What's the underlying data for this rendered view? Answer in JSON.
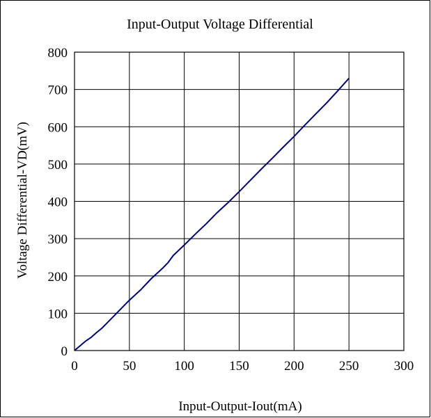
{
  "colors": {
    "series": "#000080",
    "grid": "#000000",
    "background": "#ffffff"
  },
  "chart_data": {
    "type": "line",
    "title": "Input-Output Voltage Differential",
    "xlabel": "Input-Output-Iout(mA)",
    "ylabel": "Voltage Differential-VD(mV)",
    "xlim": [
      0,
      300
    ],
    "ylim": [
      0,
      800
    ],
    "xticks": [
      0,
      50,
      100,
      150,
      200,
      250,
      300
    ],
    "yticks": [
      0,
      100,
      200,
      300,
      400,
      500,
      600,
      700,
      800
    ],
    "grid": true,
    "series": [
      {
        "x": [
          0,
          2,
          4,
          6,
          8,
          10,
          15,
          20,
          25,
          30,
          40,
          50,
          60,
          70,
          80,
          85,
          90,
          100,
          110,
          120,
          130,
          140,
          150,
          160,
          170,
          180,
          190,
          200,
          210,
          220,
          230,
          240,
          250
        ],
        "y": [
          0,
          5,
          10,
          15,
          20,
          25,
          35,
          48,
          60,
          75,
          105,
          135,
          162,
          193,
          220,
          235,
          255,
          283,
          312,
          340,
          370,
          397,
          426,
          456,
          486,
          515,
          545,
          574,
          605,
          635,
          665,
          697,
          730
        ]
      }
    ]
  }
}
